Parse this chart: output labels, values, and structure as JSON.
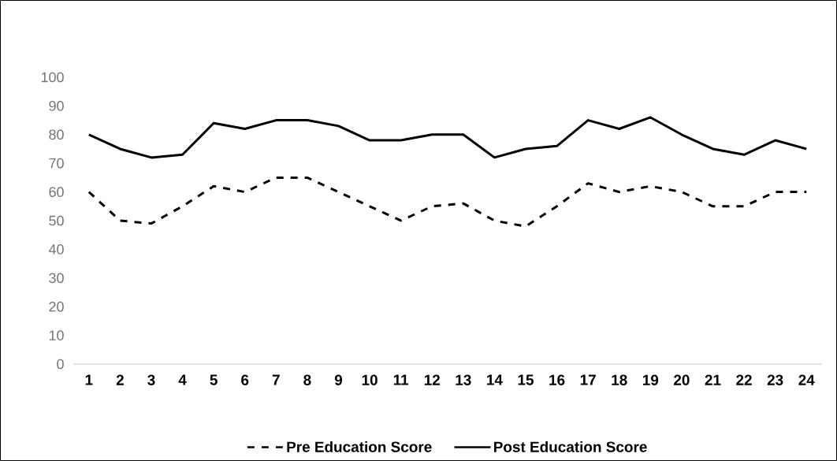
{
  "chart_data": {
    "type": "line",
    "categories": [
      "1",
      "2",
      "3",
      "4",
      "5",
      "6",
      "7",
      "8",
      "9",
      "10",
      "11",
      "12",
      "13",
      "14",
      "15",
      "16",
      "17",
      "18",
      "19",
      "20",
      "21",
      "22",
      "23",
      "24"
    ],
    "series": [
      {
        "name": "Pre Education Score",
        "color": "#000000",
        "line_style": "dashed",
        "values": [
          60,
          50,
          49,
          55,
          62,
          60,
          65,
          65,
          60,
          55,
          50,
          55,
          56,
          50,
          48,
          55,
          63,
          60,
          62,
          60,
          55,
          55,
          60,
          60
        ]
      },
      {
        "name": "Post Education Score",
        "color": "#000000",
        "line_style": "solid",
        "values": [
          80,
          75,
          72,
          73,
          84,
          82,
          85,
          85,
          83,
          78,
          78,
          80,
          80,
          72,
          75,
          76,
          85,
          82,
          86,
          80,
          75,
          73,
          78,
          75
        ]
      }
    ],
    "ylim": [
      0,
      100
    ],
    "yticks": [
      0,
      10,
      20,
      30,
      40,
      50,
      60,
      70,
      80,
      90,
      100
    ],
    "grid": false,
    "legend": "bottom",
    "marker": "none"
  }
}
